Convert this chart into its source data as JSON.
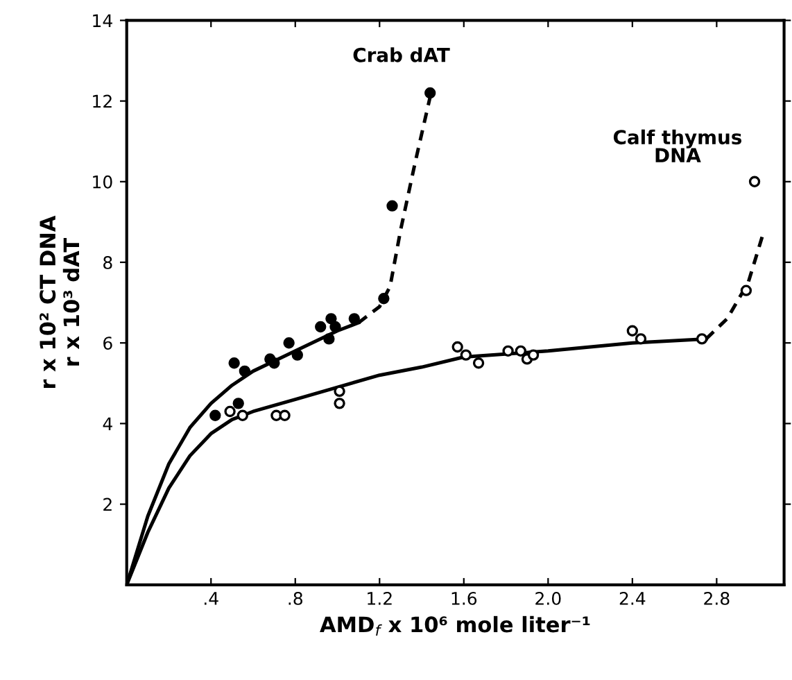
{
  "chart_data": {
    "type": "scatter",
    "xlabel": "AMD$_{f}$ x 10⁶ mole liter⁻¹",
    "ylabel": "r x 10² CT DNA\nr x 10³ dAT",
    "xlim": [
      0,
      3.12
    ],
    "ylim": [
      0,
      14
    ],
    "xticks": [
      {
        "value": 0.4,
        "label": ".4"
      },
      {
        "value": 0.8,
        "label": ".8"
      },
      {
        "value": 1.2,
        "label": "1.2"
      },
      {
        "value": 1.6,
        "label": "1.6"
      },
      {
        "value": 2.0,
        "label": "2.0"
      },
      {
        "value": 2.4,
        "label": "2.4"
      },
      {
        "value": 2.8,
        "label": "2.8"
      }
    ],
    "yticks": [
      2,
      4,
      6,
      8,
      10,
      12,
      14
    ],
    "grid": false,
    "series": [
      {
        "name": "Crab dAT",
        "marker": "circle",
        "color": "#000000",
        "x": [
          0.42,
          0.51,
          0.53,
          0.56,
          0.68,
          0.7,
          0.77,
          0.81,
          0.92,
          0.96,
          0.97,
          0.99,
          1.08,
          1.22,
          1.26,
          1.44
        ],
        "values": [
          4.2,
          5.5,
          4.5,
          5.3,
          5.6,
          5.5,
          6.0,
          5.7,
          6.4,
          6.1,
          6.6,
          6.4,
          6.6,
          7.1,
          9.4,
          12.2
        ]
      },
      {
        "name": "Calf thymus\nDNA",
        "marker": "circle",
        "color": "#ffffff",
        "x": [
          0.49,
          0.55,
          0.71,
          0.75,
          1.01,
          1.01,
          1.57,
          1.61,
          1.67,
          1.81,
          1.87,
          1.9,
          1.93,
          2.4,
          2.44,
          2.73,
          2.94,
          2.98
        ],
        "values": [
          4.3,
          4.2,
          4.2,
          4.2,
          4.8,
          4.5,
          5.9,
          5.7,
          5.5,
          5.8,
          5.8,
          5.6,
          5.7,
          6.3,
          6.1,
          6.1,
          7.3,
          10.0
        ]
      },
      {
        "type": "line",
        "line_style": "solid",
        "marker": "none",
        "color": "#000000",
        "x": [
          0,
          0.1,
          0.2,
          0.3,
          0.4,
          0.5,
          0.6,
          0.8,
          1.0,
          1.1
        ],
        "values": [
          0,
          1.7,
          3.0,
          3.9,
          4.5,
          4.95,
          5.3,
          5.8,
          6.3,
          6.5
        ]
      },
      {
        "type": "line",
        "line_style": "dashed",
        "marker": "none",
        "color": "#000000",
        "x": [
          1.1,
          1.2,
          1.25,
          1.3,
          1.37,
          1.44
        ],
        "values": [
          6.5,
          6.9,
          7.4,
          8.8,
          10.5,
          12.1
        ]
      },
      {
        "type": "line",
        "line_style": "solid",
        "marker": "none",
        "color": "#000000",
        "x": [
          0,
          0.1,
          0.2,
          0.3,
          0.4,
          0.5,
          0.6,
          0.8,
          1.0,
          1.2,
          1.4,
          1.6,
          2.0,
          2.4,
          2.75
        ],
        "values": [
          0,
          1.3,
          2.4,
          3.2,
          3.75,
          4.1,
          4.3,
          4.6,
          4.9,
          5.2,
          5.4,
          5.65,
          5.8,
          6.0,
          6.1
        ]
      },
      {
        "type": "line",
        "line_style": "dashed",
        "marker": "none",
        "color": "#000000",
        "x": [
          2.75,
          2.85,
          2.95,
          3.02
        ],
        "values": [
          6.1,
          6.6,
          7.5,
          8.7
        ]
      }
    ]
  }
}
